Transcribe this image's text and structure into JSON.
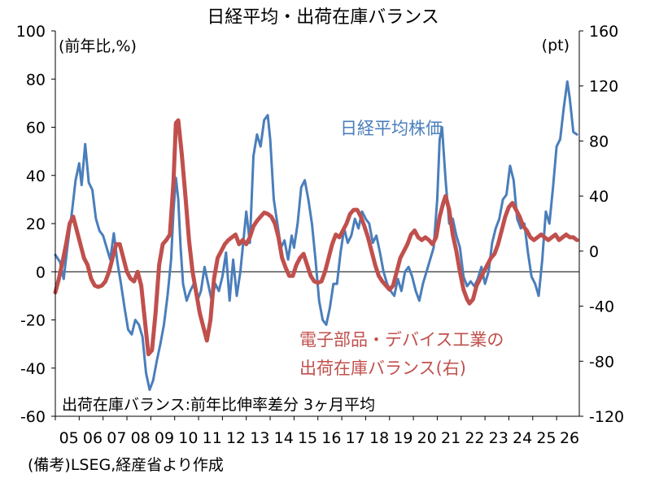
{
  "chart_data": {
    "type": "line",
    "title": "日経平均・出荷在庫バランス",
    "y_left_label": "(前年比,%)",
    "y_right_label": "(pt)",
    "ylim_left": [
      -60,
      100
    ],
    "ylim_right": [
      -120,
      160
    ],
    "yticks_left": [
      "100",
      "80",
      "60",
      "40",
      "20",
      "0",
      "-20",
      "-40",
      "-60"
    ],
    "yticks_right": [
      "160",
      "120",
      "80",
      "40",
      "0",
      "-40",
      "-80",
      "-120"
    ],
    "x_ticks": [
      "05",
      "06",
      "07",
      "08",
      "09",
      "10",
      "11",
      "12",
      "13",
      "14",
      "15",
      "16",
      "17",
      "18",
      "19",
      "20",
      "21",
      "22",
      "23",
      "24",
      "25",
      "26"
    ],
    "x_start_year": 2005,
    "x_end_year": 2026.95,
    "series": [
      {
        "name": "日経平均株価",
        "axis": "left",
        "color": "#4a7ebb",
        "points": [
          [
            2005.0,
            7
          ],
          [
            2005.2,
            4
          ],
          [
            2005.35,
            -3
          ],
          [
            2005.5,
            10
          ],
          [
            2005.7,
            25
          ],
          [
            2005.85,
            38
          ],
          [
            2006.0,
            45
          ],
          [
            2006.1,
            36
          ],
          [
            2006.25,
            53
          ],
          [
            2006.4,
            37
          ],
          [
            2006.55,
            34
          ],
          [
            2006.7,
            22
          ],
          [
            2006.85,
            17
          ],
          [
            2007.0,
            15
          ],
          [
            2007.15,
            10
          ],
          [
            2007.3,
            5
          ],
          [
            2007.45,
            16
          ],
          [
            2007.6,
            4
          ],
          [
            2007.75,
            -5
          ],
          [
            2007.9,
            -15
          ],
          [
            2008.05,
            -24
          ],
          [
            2008.2,
            -26
          ],
          [
            2008.35,
            -20
          ],
          [
            2008.5,
            -22
          ],
          [
            2008.65,
            -27
          ],
          [
            2008.8,
            -42
          ],
          [
            2008.95,
            -49
          ],
          [
            2009.1,
            -45
          ],
          [
            2009.25,
            -37
          ],
          [
            2009.4,
            -30
          ],
          [
            2009.55,
            -22
          ],
          [
            2009.7,
            -10
          ],
          [
            2009.85,
            5
          ],
          [
            2009.95,
            25
          ],
          [
            2010.05,
            39
          ],
          [
            2010.15,
            30
          ],
          [
            2010.25,
            10
          ],
          [
            2010.35,
            -5
          ],
          [
            2010.5,
            -12
          ],
          [
            2010.65,
            -8
          ],
          [
            2010.8,
            -5
          ],
          [
            2010.95,
            -12
          ],
          [
            2011.1,
            -8
          ],
          [
            2011.25,
            2
          ],
          [
            2011.4,
            -5
          ],
          [
            2011.55,
            -12
          ],
          [
            2011.7,
            -5
          ],
          [
            2011.85,
            -8
          ],
          [
            2012.0,
            -2
          ],
          [
            2012.15,
            8
          ],
          [
            2012.3,
            -12
          ],
          [
            2012.45,
            5
          ],
          [
            2012.6,
            -10
          ],
          [
            2012.75,
            0
          ],
          [
            2012.9,
            15
          ],
          [
            2013.0,
            25
          ],
          [
            2013.15,
            12
          ],
          [
            2013.3,
            48
          ],
          [
            2013.45,
            57
          ],
          [
            2013.6,
            52
          ],
          [
            2013.75,
            63
          ],
          [
            2013.9,
            65
          ],
          [
            2014.0,
            55
          ],
          [
            2014.15,
            30
          ],
          [
            2014.3,
            20
          ],
          [
            2014.45,
            10
          ],
          [
            2014.6,
            13
          ],
          [
            2014.75,
            5
          ],
          [
            2014.9,
            15
          ],
          [
            2015.0,
            10
          ],
          [
            2015.15,
            20
          ],
          [
            2015.3,
            35
          ],
          [
            2015.45,
            38
          ],
          [
            2015.6,
            30
          ],
          [
            2015.75,
            20
          ],
          [
            2015.9,
            5
          ],
          [
            2016.05,
            -12
          ],
          [
            2016.2,
            -20
          ],
          [
            2016.35,
            -22
          ],
          [
            2016.5,
            -15
          ],
          [
            2016.65,
            -5
          ],
          [
            2016.8,
            -5
          ],
          [
            2016.95,
            8
          ],
          [
            2017.1,
            18
          ],
          [
            2017.25,
            12
          ],
          [
            2017.4,
            15
          ],
          [
            2017.55,
            22
          ],
          [
            2017.7,
            18
          ],
          [
            2017.85,
            25
          ],
          [
            2018.0,
            22
          ],
          [
            2018.15,
            20
          ],
          [
            2018.3,
            12
          ],
          [
            2018.45,
            15
          ],
          [
            2018.6,
            8
          ],
          [
            2018.75,
            0
          ],
          [
            2018.9,
            -5
          ],
          [
            2019.05,
            -8
          ],
          [
            2019.2,
            -10
          ],
          [
            2019.35,
            -3
          ],
          [
            2019.5,
            -8
          ],
          [
            2019.65,
            0
          ],
          [
            2019.8,
            2
          ],
          [
            2019.95,
            -2
          ],
          [
            2020.1,
            -8
          ],
          [
            2020.25,
            -12
          ],
          [
            2020.4,
            -5
          ],
          [
            2020.55,
            0
          ],
          [
            2020.7,
            5
          ],
          [
            2020.85,
            10
          ],
          [
            2021.0,
            30
          ],
          [
            2021.1,
            55
          ],
          [
            2021.2,
            60
          ],
          [
            2021.35,
            38
          ],
          [
            2021.5,
            20
          ],
          [
            2021.65,
            22
          ],
          [
            2021.8,
            15
          ],
          [
            2021.95,
            10
          ],
          [
            2022.1,
            -2
          ],
          [
            2022.25,
            -6
          ],
          [
            2022.4,
            -4
          ],
          [
            2022.55,
            -6
          ],
          [
            2022.7,
            -3
          ],
          [
            2022.85,
            2
          ],
          [
            2023.0,
            -5
          ],
          [
            2023.15,
            0
          ],
          [
            2023.3,
            12
          ],
          [
            2023.45,
            18
          ],
          [
            2023.6,
            22
          ],
          [
            2023.75,
            30
          ],
          [
            2023.9,
            32
          ],
          [
            2024.05,
            44
          ],
          [
            2024.2,
            38
          ],
          [
            2024.35,
            22
          ],
          [
            2024.5,
            18
          ],
          [
            2024.65,
            20
          ],
          [
            2024.8,
            8
          ],
          [
            2024.95,
            -2
          ],
          [
            2025.1,
            -5
          ],
          [
            2025.25,
            -10
          ],
          [
            2025.4,
            5
          ],
          [
            2025.55,
            25
          ],
          [
            2025.7,
            20
          ],
          [
            2025.85,
            35
          ],
          [
            2026.0,
            52
          ],
          [
            2026.15,
            55
          ],
          [
            2026.3,
            68
          ],
          [
            2026.45,
            79
          ],
          [
            2026.55,
            72
          ],
          [
            2026.7,
            58
          ],
          [
            2026.85,
            57
          ]
        ]
      },
      {
        "name": "電子部品・デバイス工業の出荷在庫バランス(右)",
        "axis": "right",
        "color": "#c0504d",
        "points": [
          [
            2005.0,
            -30
          ],
          [
            2005.15,
            -20
          ],
          [
            2005.3,
            -8
          ],
          [
            2005.45,
            5
          ],
          [
            2005.6,
            20
          ],
          [
            2005.75,
            25
          ],
          [
            2005.9,
            15
          ],
          [
            2006.05,
            5
          ],
          [
            2006.2,
            -5
          ],
          [
            2006.35,
            -10
          ],
          [
            2006.5,
            -20
          ],
          [
            2006.65,
            -25
          ],
          [
            2006.8,
            -26
          ],
          [
            2006.95,
            -25
          ],
          [
            2007.1,
            -22
          ],
          [
            2007.25,
            -15
          ],
          [
            2007.4,
            -5
          ],
          [
            2007.55,
            5
          ],
          [
            2007.7,
            5
          ],
          [
            2007.85,
            -5
          ],
          [
            2008.0,
            -15
          ],
          [
            2008.15,
            -20
          ],
          [
            2008.3,
            -22
          ],
          [
            2008.45,
            -15
          ],
          [
            2008.6,
            -25
          ],
          [
            2008.75,
            -50
          ],
          [
            2008.9,
            -75
          ],
          [
            2009.05,
            -72
          ],
          [
            2009.2,
            -45
          ],
          [
            2009.35,
            -10
          ],
          [
            2009.5,
            5
          ],
          [
            2009.65,
            8
          ],
          [
            2009.8,
            12
          ],
          [
            2009.95,
            50
          ],
          [
            2010.05,
            93
          ],
          [
            2010.15,
            95
          ],
          [
            2010.3,
            70
          ],
          [
            2010.45,
            40
          ],
          [
            2010.6,
            8
          ],
          [
            2010.75,
            -15
          ],
          [
            2010.9,
            -30
          ],
          [
            2011.05,
            -45
          ],
          [
            2011.2,
            -55
          ],
          [
            2011.35,
            -65
          ],
          [
            2011.5,
            -50
          ],
          [
            2011.65,
            -20
          ],
          [
            2011.8,
            -5
          ],
          [
            2011.95,
            0
          ],
          [
            2012.1,
            5
          ],
          [
            2012.25,
            8
          ],
          [
            2012.4,
            10
          ],
          [
            2012.55,
            12
          ],
          [
            2012.7,
            5
          ],
          [
            2012.85,
            8
          ],
          [
            2013.0,
            5
          ],
          [
            2013.15,
            10
          ],
          [
            2013.3,
            18
          ],
          [
            2013.45,
            22
          ],
          [
            2013.6,
            25
          ],
          [
            2013.75,
            28
          ],
          [
            2013.9,
            27
          ],
          [
            2014.05,
            25
          ],
          [
            2014.2,
            20
          ],
          [
            2014.35,
            10
          ],
          [
            2014.5,
            -5
          ],
          [
            2014.65,
            -12
          ],
          [
            2014.8,
            -18
          ],
          [
            2014.95,
            -18
          ],
          [
            2015.1,
            -10
          ],
          [
            2015.25,
            -5
          ],
          [
            2015.4,
            -2
          ],
          [
            2015.55,
            -10
          ],
          [
            2015.7,
            -18
          ],
          [
            2015.85,
            -22
          ],
          [
            2016.0,
            -23
          ],
          [
            2016.15,
            -22
          ],
          [
            2016.3,
            -15
          ],
          [
            2016.45,
            -5
          ],
          [
            2016.6,
            5
          ],
          [
            2016.75,
            12
          ],
          [
            2016.9,
            10
          ],
          [
            2017.05,
            15
          ],
          [
            2017.2,
            20
          ],
          [
            2017.35,
            27
          ],
          [
            2017.5,
            30
          ],
          [
            2017.65,
            30
          ],
          [
            2017.8,
            25
          ],
          [
            2017.95,
            18
          ],
          [
            2018.1,
            10
          ],
          [
            2018.25,
            0
          ],
          [
            2018.4,
            -10
          ],
          [
            2018.55,
            -18
          ],
          [
            2018.7,
            -22
          ],
          [
            2018.85,
            -25
          ],
          [
            2019.0,
            -28
          ],
          [
            2019.15,
            -25
          ],
          [
            2019.3,
            -15
          ],
          [
            2019.45,
            -5
          ],
          [
            2019.6,
            0
          ],
          [
            2019.75,
            5
          ],
          [
            2019.9,
            12
          ],
          [
            2020.05,
            15
          ],
          [
            2020.2,
            10
          ],
          [
            2020.35,
            8
          ],
          [
            2020.5,
            10
          ],
          [
            2020.65,
            8
          ],
          [
            2020.8,
            5
          ],
          [
            2020.95,
            10
          ],
          [
            2021.1,
            25
          ],
          [
            2021.25,
            35
          ],
          [
            2021.35,
            40
          ],
          [
            2021.5,
            30
          ],
          [
            2021.65,
            12
          ],
          [
            2021.8,
            0
          ],
          [
            2021.95,
            -15
          ],
          [
            2022.1,
            -28
          ],
          [
            2022.25,
            -35
          ],
          [
            2022.35,
            -38
          ],
          [
            2022.5,
            -35
          ],
          [
            2022.65,
            -25
          ],
          [
            2022.8,
            -20
          ],
          [
            2022.95,
            -15
          ],
          [
            2023.1,
            -10
          ],
          [
            2023.25,
            -5
          ],
          [
            2023.4,
            -2
          ],
          [
            2023.55,
            5
          ],
          [
            2023.7,
            15
          ],
          [
            2023.85,
            25
          ],
          [
            2024.0,
            32
          ],
          [
            2024.15,
            35
          ],
          [
            2024.3,
            30
          ],
          [
            2024.45,
            25
          ],
          [
            2024.6,
            18
          ],
          [
            2024.75,
            15
          ],
          [
            2024.9,
            10
          ],
          [
            2025.05,
            8
          ],
          [
            2025.2,
            10
          ],
          [
            2025.35,
            12
          ],
          [
            2025.5,
            10
          ],
          [
            2025.65,
            8
          ],
          [
            2025.8,
            10
          ],
          [
            2025.95,
            12
          ],
          [
            2026.1,
            8
          ],
          [
            2026.25,
            10
          ],
          [
            2026.4,
            12
          ],
          [
            2026.55,
            10
          ],
          [
            2026.7,
            10
          ],
          [
            2026.85,
            8
          ]
        ]
      }
    ],
    "annotations": {
      "nikkei_label": "日経平均株価",
      "balance_label_line1": "電子部品・デバイス工業の",
      "balance_label_line2": "出荷在庫バランス(右)",
      "footnote_inside": "出荷在庫バランス:前年比伸率差分 3ヶ月平均"
    },
    "source_note": "(備考)LSEG,経産省より作成"
  }
}
